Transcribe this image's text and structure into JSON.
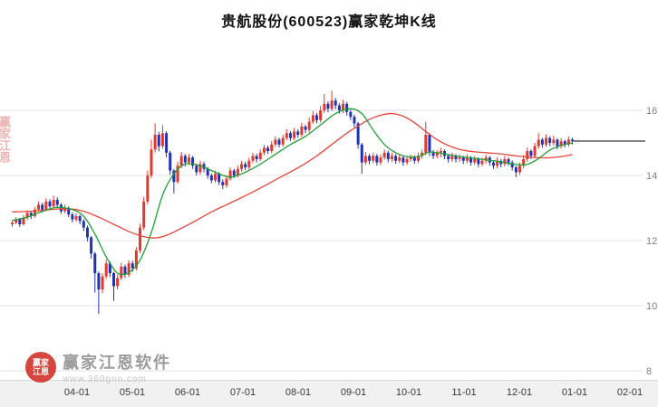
{
  "colors": {
    "up": "#e03a2f",
    "down": "#2233b0",
    "ma_fast": "#22a036",
    "ma_slow": "#e8443a",
    "grid": "#e2e2e2",
    "axis_text": "#808080",
    "tick_text": "#3a3a3a",
    "last_price_line": "#000000",
    "bottom_bar": "#f1f1f1"
  },
  "watermark": {
    "brand": "赢家江恩软件",
    "url": "www.360gnn.com",
    "logo_line1": "赢家",
    "logo_line2": "江恩",
    "side_text": "赢家江恩"
  },
  "chart_data": {
    "type": "candlestick",
    "title": "贵航股份(600523)赢家乾坤K线",
    "y_ticks": [
      16,
      14,
      12,
      10,
      8
    ],
    "y_range": [
      7.8,
      17.2
    ],
    "grid": true,
    "x_tick_labels": [
      "04-01",
      "05-01",
      "06-01",
      "07-01",
      "08-01",
      "09-01",
      "10-01",
      "11-01",
      "12-01",
      "01-01",
      "02-01"
    ],
    "last_price": 15.05,
    "legend": "none",
    "candles": [
      [
        12.5,
        12.62,
        12.42,
        12.55
      ],
      [
        12.55,
        12.72,
        12.5,
        12.65
      ],
      [
        12.65,
        12.7,
        12.42,
        12.5
      ],
      [
        12.5,
        12.78,
        12.46,
        12.7
      ],
      [
        12.7,
        12.93,
        12.64,
        12.85
      ],
      [
        12.85,
        12.9,
        12.66,
        12.75
      ],
      [
        12.75,
        13.03,
        12.7,
        12.95
      ],
      [
        12.95,
        13.2,
        12.9,
        13.1
      ],
      [
        13.1,
        13.16,
        12.86,
        12.95
      ],
      [
        12.95,
        13.3,
        12.9,
        13.2
      ],
      [
        13.2,
        13.27,
        12.96,
        13.05
      ],
      [
        13.05,
        13.38,
        13.0,
        13.25
      ],
      [
        13.25,
        13.33,
        13.0,
        13.1
      ],
      [
        13.1,
        13.15,
        12.82,
        12.9
      ],
      [
        12.9,
        13.1,
        12.84,
        13.0
      ],
      [
        13.0,
        13.05,
        12.72,
        12.8
      ],
      [
        12.8,
        12.86,
        12.56,
        12.65
      ],
      [
        12.65,
        12.84,
        12.58,
        12.75
      ],
      [
        12.75,
        12.8,
        12.5,
        12.6
      ],
      [
        12.6,
        12.66,
        12.3,
        12.4
      ],
      [
        12.4,
        12.46,
        11.98,
        12.1
      ],
      [
        12.1,
        12.14,
        11.45,
        11.6
      ],
      [
        11.6,
        11.65,
        10.4,
        11.0
      ],
      [
        11.0,
        11.05,
        9.75,
        10.5
      ],
      [
        10.5,
        11.0,
        10.38,
        10.9
      ],
      [
        10.9,
        11.42,
        10.82,
        11.3
      ],
      [
        11.3,
        11.36,
        10.88,
        11.0
      ],
      [
        11.0,
        11.04,
        10.15,
        10.6
      ],
      [
        10.6,
        10.96,
        10.5,
        10.85
      ],
      [
        10.85,
        11.32,
        10.78,
        11.2
      ],
      [
        11.2,
        11.26,
        10.85,
        10.95
      ],
      [
        10.95,
        11.4,
        10.88,
        11.3
      ],
      [
        11.3,
        11.38,
        11.04,
        11.15
      ],
      [
        11.15,
        11.8,
        11.08,
        11.7
      ],
      [
        11.7,
        12.52,
        11.62,
        12.4
      ],
      [
        12.4,
        13.34,
        12.32,
        13.2
      ],
      [
        13.2,
        14.15,
        13.12,
        14.0
      ],
      [
        14.0,
        15.1,
        13.92,
        14.8
      ],
      [
        14.8,
        15.6,
        14.7,
        15.25
      ],
      [
        15.25,
        15.34,
        14.74,
        14.9
      ],
      [
        14.9,
        15.55,
        14.82,
        15.3
      ],
      [
        15.3,
        15.36,
        14.56,
        14.7
      ],
      [
        14.7,
        14.76,
        14.02,
        14.15
      ],
      [
        14.15,
        14.2,
        13.45,
        13.8
      ],
      [
        13.8,
        14.42,
        13.74,
        14.3
      ],
      [
        14.3,
        14.72,
        14.22,
        14.6
      ],
      [
        14.6,
        14.66,
        14.28,
        14.4
      ],
      [
        14.4,
        14.66,
        14.32,
        14.55
      ],
      [
        14.55,
        14.6,
        14.2,
        14.3
      ],
      [
        14.3,
        14.36,
        14.0,
        14.1
      ],
      [
        14.1,
        14.45,
        14.02,
        14.35
      ],
      [
        14.35,
        14.42,
        14.1,
        14.2
      ],
      [
        14.2,
        14.26,
        13.9,
        14.0
      ],
      [
        14.0,
        14.06,
        13.76,
        13.85
      ],
      [
        13.85,
        14.15,
        13.78,
        14.05
      ],
      [
        14.05,
        14.1,
        13.7,
        13.8
      ],
      [
        13.8,
        13.88,
        13.58,
        13.7
      ],
      [
        13.7,
        14.0,
        13.62,
        13.9
      ],
      [
        13.9,
        14.25,
        13.84,
        14.15
      ],
      [
        14.15,
        14.2,
        13.92,
        14.0
      ],
      [
        14.0,
        14.3,
        13.94,
        14.2
      ],
      [
        14.2,
        14.45,
        14.12,
        14.35
      ],
      [
        14.35,
        14.42,
        14.16,
        14.25
      ],
      [
        14.25,
        14.55,
        14.18,
        14.45
      ],
      [
        14.45,
        14.7,
        14.38,
        14.6
      ],
      [
        14.6,
        14.66,
        14.4,
        14.5
      ],
      [
        14.5,
        14.8,
        14.44,
        14.7
      ],
      [
        14.7,
        14.95,
        14.62,
        14.85
      ],
      [
        14.85,
        14.92,
        14.66,
        14.75
      ],
      [
        14.75,
        15.05,
        14.68,
        14.95
      ],
      [
        14.95,
        15.2,
        14.88,
        15.1
      ],
      [
        15.1,
        15.16,
        14.86,
        14.95
      ],
      [
        14.95,
        15.25,
        14.88,
        15.15
      ],
      [
        15.15,
        15.42,
        15.08,
        15.3
      ],
      [
        15.3,
        15.36,
        15.06,
        15.15
      ],
      [
        15.15,
        15.46,
        15.08,
        15.35
      ],
      [
        15.35,
        15.42,
        15.16,
        15.25
      ],
      [
        15.25,
        15.62,
        15.18,
        15.5
      ],
      [
        15.5,
        15.56,
        15.3,
        15.4
      ],
      [
        15.4,
        15.78,
        15.32,
        15.65
      ],
      [
        15.65,
        15.98,
        15.58,
        15.85
      ],
      [
        15.85,
        15.92,
        15.6,
        15.7
      ],
      [
        15.7,
        16.14,
        15.62,
        16.0
      ],
      [
        16.0,
        16.5,
        15.92,
        16.2
      ],
      [
        16.2,
        16.28,
        15.94,
        16.05
      ],
      [
        16.05,
        16.6,
        15.98,
        16.3
      ],
      [
        16.3,
        16.38,
        16.04,
        16.15
      ],
      [
        16.15,
        16.22,
        15.9,
        16.0
      ],
      [
        16.0,
        16.32,
        15.92,
        16.2
      ],
      [
        16.2,
        16.26,
        15.84,
        15.95
      ],
      [
        15.95,
        16.02,
        15.7,
        15.8
      ],
      [
        15.8,
        15.86,
        15.48,
        15.6
      ],
      [
        15.6,
        15.64,
        14.82,
        14.95
      ],
      [
        14.95,
        15.0,
        14.05,
        14.4
      ],
      [
        14.4,
        14.72,
        14.32,
        14.6
      ],
      [
        14.6,
        14.66,
        14.34,
        14.45
      ],
      [
        14.45,
        14.7,
        14.38,
        14.6
      ],
      [
        14.6,
        14.66,
        14.3,
        14.4
      ],
      [
        14.4,
        14.65,
        14.32,
        14.55
      ],
      [
        14.55,
        14.8,
        14.48,
        14.7
      ],
      [
        14.7,
        14.76,
        14.4,
        14.5
      ],
      [
        14.5,
        14.7,
        14.42,
        14.6
      ],
      [
        14.6,
        14.66,
        14.36,
        14.45
      ],
      [
        14.45,
        14.64,
        14.38,
        14.55
      ],
      [
        14.55,
        14.6,
        14.3,
        14.4
      ],
      [
        14.4,
        14.6,
        14.32,
        14.5
      ],
      [
        14.5,
        14.64,
        14.42,
        14.55
      ],
      [
        14.55,
        14.62,
        14.36,
        14.45
      ],
      [
        14.45,
        14.7,
        14.38,
        14.6
      ],
      [
        14.6,
        14.8,
        14.52,
        14.7
      ],
      [
        14.7,
        15.65,
        14.62,
        15.25
      ],
      [
        15.25,
        15.3,
        14.6,
        14.7
      ],
      [
        14.7,
        14.78,
        14.5,
        14.6
      ],
      [
        14.6,
        14.78,
        14.52,
        14.7
      ],
      [
        14.7,
        14.85,
        14.56,
        14.75
      ],
      [
        14.75,
        14.8,
        14.5,
        14.6
      ],
      [
        14.6,
        14.66,
        14.4,
        14.5
      ],
      [
        14.5,
        14.7,
        14.42,
        14.6
      ],
      [
        14.6,
        14.66,
        14.4,
        14.5
      ],
      [
        14.5,
        14.64,
        14.42,
        14.55
      ],
      [
        14.55,
        14.6,
        14.35,
        14.45
      ],
      [
        14.45,
        14.65,
        14.38,
        14.55
      ],
      [
        14.55,
        14.6,
        14.3,
        14.4
      ],
      [
        14.4,
        14.6,
        14.32,
        14.5
      ],
      [
        14.5,
        14.56,
        14.25,
        14.35
      ],
      [
        14.35,
        14.55,
        14.28,
        14.45
      ],
      [
        14.45,
        14.64,
        14.36,
        14.55
      ],
      [
        14.55,
        14.6,
        14.3,
        14.4
      ],
      [
        14.4,
        14.46,
        14.2,
        14.3
      ],
      [
        14.3,
        14.55,
        14.22,
        14.45
      ],
      [
        14.45,
        14.5,
        14.25,
        14.35
      ],
      [
        14.35,
        14.6,
        14.28,
        14.5
      ],
      [
        14.5,
        14.56,
        14.3,
        14.4
      ],
      [
        14.4,
        14.46,
        14.15,
        14.25
      ],
      [
        14.25,
        14.3,
        13.95,
        14.1
      ],
      [
        14.1,
        14.4,
        14.02,
        14.3
      ],
      [
        14.3,
        14.62,
        14.22,
        14.5
      ],
      [
        14.5,
        14.86,
        14.42,
        14.75
      ],
      [
        14.75,
        14.8,
        14.5,
        14.6
      ],
      [
        14.6,
        15.0,
        14.52,
        14.9
      ],
      [
        14.9,
        15.3,
        14.82,
        15.1
      ],
      [
        15.1,
        15.16,
        14.85,
        14.95
      ],
      [
        14.95,
        15.26,
        14.88,
        15.15
      ],
      [
        15.15,
        15.2,
        14.9,
        15.0
      ],
      [
        15.0,
        15.22,
        14.92,
        15.1
      ],
      [
        15.1,
        15.14,
        14.8,
        14.9
      ],
      [
        14.9,
        15.15,
        14.82,
        15.05
      ],
      [
        15.05,
        15.1,
        14.86,
        14.95
      ],
      [
        14.95,
        15.2,
        14.88,
        15.1
      ],
      [
        15.1,
        15.16,
        14.95,
        15.05
      ]
    ],
    "ma_fast_points": [
      [
        0,
        12.62
      ],
      [
        4,
        12.72
      ],
      [
        8,
        12.9
      ],
      [
        12,
        13.02
      ],
      [
        16,
        12.95
      ],
      [
        19,
        12.75
      ],
      [
        22,
        12.2
      ],
      [
        25,
        11.5
      ],
      [
        28,
        11.0
      ],
      [
        31,
        11.02
      ],
      [
        34,
        11.4
      ],
      [
        37,
        12.25
      ],
      [
        40,
        13.4
      ],
      [
        43,
        14.05
      ],
      [
        46,
        14.35
      ],
      [
        50,
        14.3
      ],
      [
        54,
        14.1
      ],
      [
        58,
        13.95
      ],
      [
        62,
        14.1
      ],
      [
        66,
        14.35
      ],
      [
        70,
        14.65
      ],
      [
        74,
        14.95
      ],
      [
        78,
        15.2
      ],
      [
        82,
        15.55
      ],
      [
        86,
        15.9
      ],
      [
        90,
        16.05
      ],
      [
        93,
        15.9
      ],
      [
        96,
        15.4
      ],
      [
        99,
        14.95
      ],
      [
        102,
        14.7
      ],
      [
        105,
        14.58
      ],
      [
        108,
        14.58
      ],
      [
        111,
        14.72
      ],
      [
        114,
        14.68
      ],
      [
        118,
        14.6
      ],
      [
        122,
        14.54
      ],
      [
        126,
        14.48
      ],
      [
        130,
        14.42
      ],
      [
        134,
        14.34
      ],
      [
        137,
        14.34
      ],
      [
        140,
        14.52
      ],
      [
        143,
        14.78
      ],
      [
        146,
        14.92
      ],
      [
        149,
        15.0
      ]
    ],
    "ma_slow_points": [
      [
        0,
        12.88
      ],
      [
        5,
        12.9
      ],
      [
        10,
        12.95
      ],
      [
        15,
        12.98
      ],
      [
        19,
        12.9
      ],
      [
        23,
        12.72
      ],
      [
        27,
        12.5
      ],
      [
        31,
        12.28
      ],
      [
        35,
        12.12
      ],
      [
        38,
        12.08
      ],
      [
        41,
        12.16
      ],
      [
        45,
        12.38
      ],
      [
        49,
        12.62
      ],
      [
        53,
        12.88
      ],
      [
        57,
        13.1
      ],
      [
        61,
        13.32
      ],
      [
        65,
        13.55
      ],
      [
        69,
        13.8
      ],
      [
        73,
        14.05
      ],
      [
        77,
        14.3
      ],
      [
        81,
        14.6
      ],
      [
        85,
        14.95
      ],
      [
        89,
        15.3
      ],
      [
        92,
        15.52
      ],
      [
        95,
        15.72
      ],
      [
        98,
        15.85
      ],
      [
        101,
        15.9
      ],
      [
        104,
        15.82
      ],
      [
        107,
        15.62
      ],
      [
        110,
        15.35
      ],
      [
        113,
        15.1
      ],
      [
        116,
        14.92
      ],
      [
        119,
        14.8
      ],
      [
        122,
        14.74
      ],
      [
        126,
        14.7
      ],
      [
        130,
        14.66
      ],
      [
        134,
        14.6
      ],
      [
        138,
        14.56
      ],
      [
        142,
        14.54
      ],
      [
        146,
        14.58
      ],
      [
        149,
        14.64
      ]
    ]
  }
}
